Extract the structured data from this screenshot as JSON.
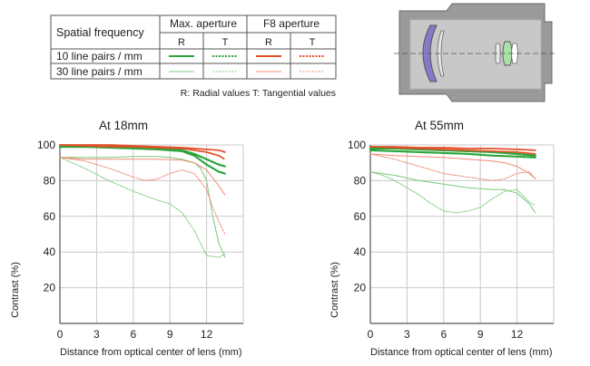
{
  "legend_table": {
    "header": "Spatial frequency",
    "groups": [
      "Max. aperture",
      "F8 aperture"
    ],
    "subheaders": [
      "R",
      "T",
      "R",
      "T"
    ],
    "rows": [
      "10 line pairs / mm",
      "30 line pairs / mm"
    ],
    "note": "R: Radial values  T: Tangential values"
  },
  "colors": {
    "green": "#2aa53a",
    "green_light": "#7cc87a",
    "red": "#e2502a",
    "red_light": "#f08a72",
    "grid": "#c9c9c9",
    "lens_body": "#9a9a9a",
    "lens_element": "#8878c8"
  },
  "lens_diagram": {
    "icon": "lens-cross-section-icon"
  },
  "chart_data": [
    {
      "type": "line",
      "title": "At 18mm",
      "xlabel": "Distance from optical center of lens (mm)",
      "ylabel": "Contrast (%)",
      "xlim": [
        0,
        15
      ],
      "ylim": [
        0,
        100
      ],
      "xticks": [
        0,
        3,
        6,
        9,
        12
      ],
      "yticks": [
        20,
        40,
        60,
        80,
        100
      ],
      "grid": true,
      "series": [
        {
          "color": "green",
          "dash": false,
          "width": 2.2,
          "x": [
            0,
            2,
            4,
            6,
            8,
            9,
            10,
            11,
            12,
            13,
            13.5
          ],
          "y": [
            99,
            99,
            99,
            99,
            98.5,
            98,
            97,
            95,
            92,
            89,
            88
          ]
        },
        {
          "color": "green",
          "dash": true,
          "width": 2.2,
          "x": [
            0,
            2,
            4,
            6,
            8,
            10,
            11,
            12,
            13,
            13.5
          ],
          "y": [
            99,
            99,
            98.5,
            98,
            97.5,
            96.5,
            94,
            89,
            85,
            84
          ]
        },
        {
          "color": "red",
          "dash": false,
          "width": 1.8,
          "x": [
            0,
            2,
            4,
            6,
            8,
            10,
            11,
            12,
            13,
            13.5
          ],
          "y": [
            100,
            100,
            100,
            99.5,
            99,
            98.5,
            98,
            97.5,
            97,
            96
          ]
        },
        {
          "color": "red",
          "dash": true,
          "width": 1.8,
          "x": [
            0,
            2,
            4,
            6,
            8,
            10,
            11,
            12,
            13,
            13.5
          ],
          "y": [
            100,
            99.5,
            99,
            99,
            98.5,
            98,
            97,
            96,
            94,
            92
          ]
        },
        {
          "color": "green_light",
          "dash": false,
          "width": 1.0,
          "x": [
            0,
            2,
            4,
            6,
            8,
            9,
            10,
            11,
            11.5,
            12,
            12.5,
            13,
            13.5
          ],
          "y": [
            93,
            93,
            93,
            93.5,
            93.5,
            93,
            92,
            90,
            87,
            80,
            60,
            45,
            37
          ]
        },
        {
          "color": "green_light",
          "dash": true,
          "width": 1.0,
          "x": [
            0,
            1,
            2,
            4,
            6,
            8,
            9,
            10,
            11,
            12,
            13,
            13.5
          ],
          "y": [
            93,
            90,
            87,
            80,
            74,
            69,
            67,
            62,
            52,
            38,
            37,
            39
          ]
        },
        {
          "color": "red_light",
          "dash": false,
          "width": 1.0,
          "x": [
            0,
            2,
            4,
            6,
            8,
            10,
            11,
            12,
            13,
            13.5
          ],
          "y": [
            93,
            92,
            92,
            92,
            92,
            91.5,
            90,
            86,
            77,
            72
          ]
        },
        {
          "color": "red_light",
          "dash": true,
          "width": 1.0,
          "x": [
            0,
            2,
            4,
            6,
            7,
            8,
            9,
            10,
            11,
            12,
            12.5,
            13,
            13.5
          ],
          "y": [
            93,
            91,
            87,
            82,
            80,
            81,
            84,
            86,
            84,
            75,
            65,
            57,
            50
          ]
        }
      ]
    },
    {
      "type": "line",
      "title": "At 55mm",
      "xlabel": "Distance from optical center of lens (mm)",
      "ylabel": "Contrast (%)",
      "xlim": [
        0,
        15
      ],
      "ylim": [
        0,
        100
      ],
      "xticks": [
        0,
        3,
        6,
        9,
        12
      ],
      "yticks": [
        20,
        40,
        60,
        80,
        100
      ],
      "grid": true,
      "series": [
        {
          "color": "green",
          "dash": false,
          "width": 2.2,
          "x": [
            0,
            2,
            4,
            6,
            8,
            10,
            12,
            13.5
          ],
          "y": [
            98,
            98,
            97.5,
            97,
            96.5,
            96,
            95,
            94
          ]
        },
        {
          "color": "green",
          "dash": true,
          "width": 2.2,
          "x": [
            0,
            2,
            4,
            6,
            8,
            10,
            12,
            13.5
          ],
          "y": [
            97,
            96.5,
            96,
            95.5,
            95,
            94,
            93.5,
            93
          ]
        },
        {
          "color": "red",
          "dash": false,
          "width": 1.8,
          "x": [
            0,
            2,
            4,
            6,
            8,
            10,
            12,
            13.5
          ],
          "y": [
            99,
            99,
            98.5,
            98.5,
            98,
            98,
            97.5,
            97
          ]
        },
        {
          "color": "red",
          "dash": true,
          "width": 1.8,
          "x": [
            0,
            2,
            4,
            6,
            8,
            10,
            12,
            13.5
          ],
          "y": [
            99,
            98.5,
            98,
            97.5,
            97,
            96.5,
            96,
            95
          ]
        },
        {
          "color": "green_light",
          "dash": false,
          "width": 1.0,
          "x": [
            0,
            2,
            4,
            6,
            8,
            10,
            11,
            12,
            13,
            13.5
          ],
          "y": [
            85,
            83,
            80,
            78,
            76,
            75,
            75,
            73,
            67,
            62
          ]
        },
        {
          "color": "green_light",
          "dash": true,
          "width": 1.0,
          "x": [
            0,
            1,
            2,
            3,
            4,
            5,
            6,
            7,
            8,
            9,
            10,
            11,
            12,
            13,
            13.5
          ],
          "y": [
            85,
            83,
            80,
            76,
            72,
            67,
            63,
            62,
            63,
            65,
            70,
            74,
            75,
            68,
            66
          ]
        },
        {
          "color": "red_light",
          "dash": false,
          "width": 1.0,
          "x": [
            0,
            2,
            4,
            6,
            8,
            10,
            11,
            12,
            13,
            13.5
          ],
          "y": [
            95,
            94,
            93.5,
            93,
            92,
            91,
            90,
            88,
            84,
            81
          ]
        },
        {
          "color": "red_light",
          "dash": true,
          "width": 1.0,
          "x": [
            0,
            2,
            4,
            6,
            8,
            9,
            10,
            11,
            12,
            13,
            13.5
          ],
          "y": [
            95,
            92,
            88,
            84,
            82,
            81,
            80,
            81,
            84,
            85,
            81
          ]
        }
      ]
    }
  ]
}
